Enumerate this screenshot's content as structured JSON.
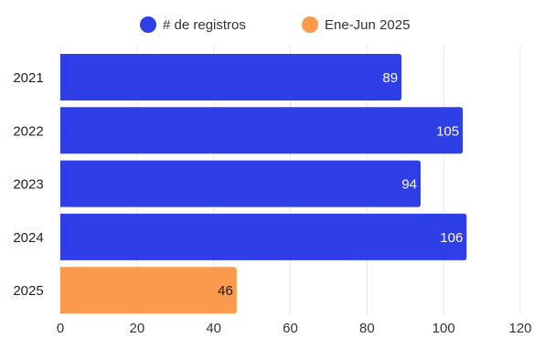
{
  "chart_data": {
    "type": "bar",
    "orientation": "horizontal",
    "categories": [
      "2021",
      "2022",
      "2023",
      "2024",
      "2025"
    ],
    "values": [
      89,
      105,
      94,
      106,
      46
    ],
    "series": [
      {
        "name": "# de registros",
        "color": "#2f3fe8",
        "categories": [
          "2021",
          "2022",
          "2023",
          "2024"
        ]
      },
      {
        "name": "Ene-Jun 2025",
        "color": "#fb9a4c",
        "categories": [
          "2025"
        ]
      }
    ],
    "data_labels": [
      "89",
      "105",
      "94",
      "106",
      "46"
    ],
    "x_ticks": [
      "0",
      "20",
      "40",
      "60",
      "80",
      "100",
      "120"
    ],
    "xlim": [
      0,
      120
    ],
    "grid": true,
    "legend_position": "top"
  }
}
